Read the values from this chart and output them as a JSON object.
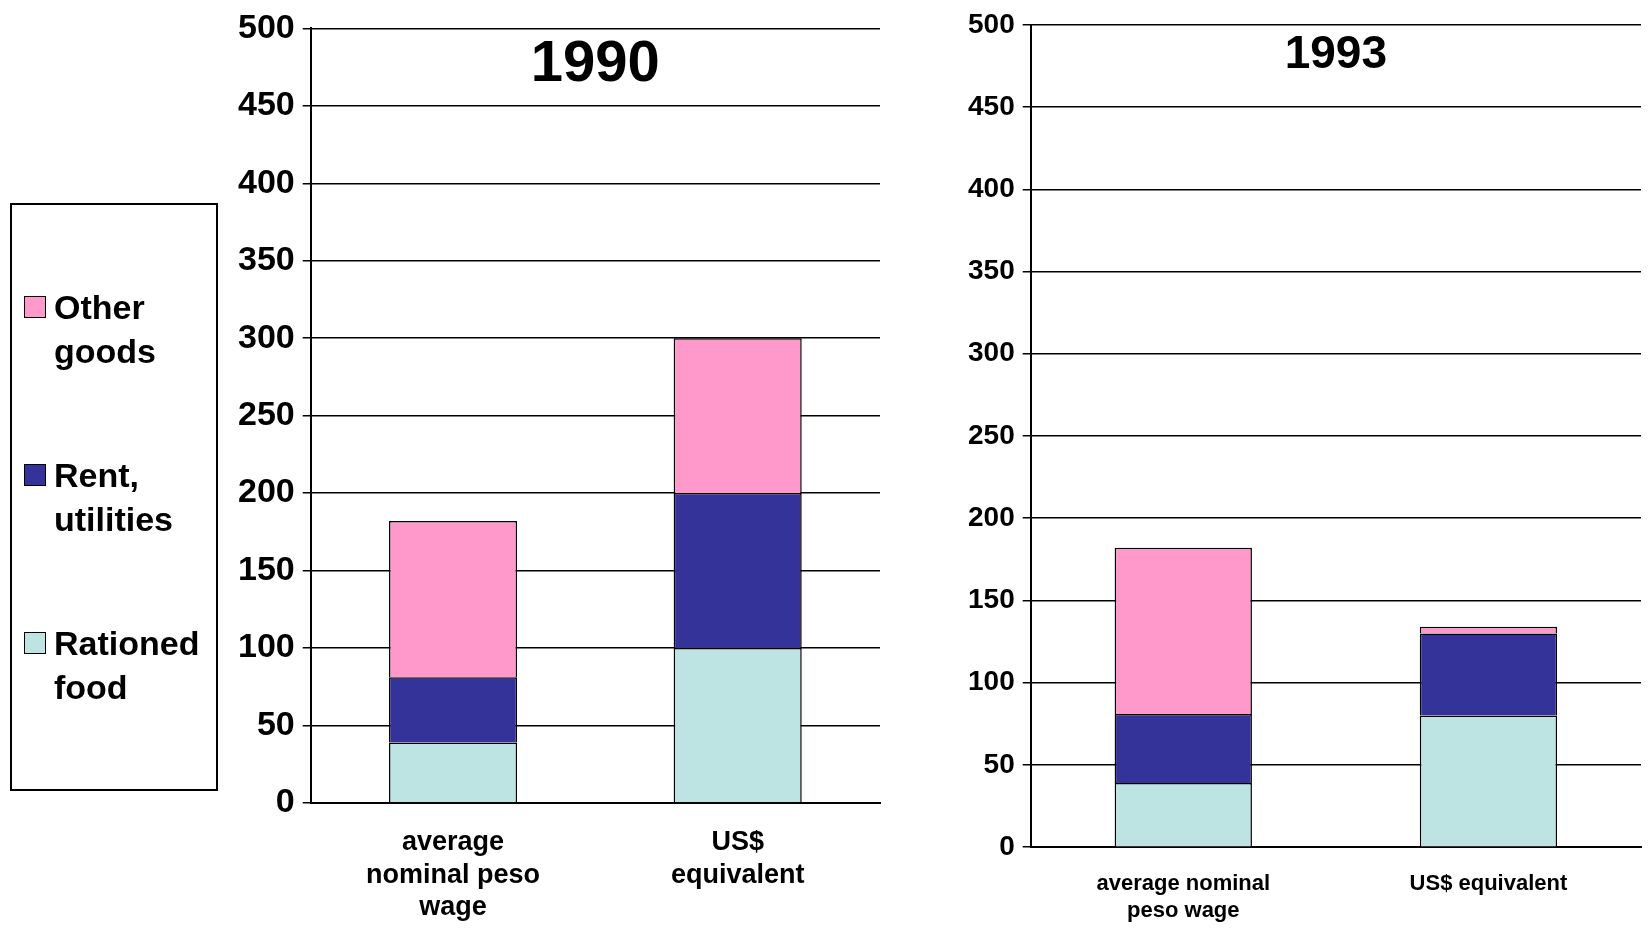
{
  "chart_data": [
    {
      "type": "bar",
      "title": "1990",
      "categories": [
        "average nominal peso wage",
        "US$ equivalent"
      ],
      "stacked": true,
      "legend": "left",
      "series": [
        {
          "name": "Rationed food",
          "color": "#bde3e3",
          "values": [
            39,
            100
          ]
        },
        {
          "name": "Rent, utilities",
          "color": "#333399",
          "values": [
            42,
            100
          ]
        },
        {
          "name": "Other goods",
          "color": "#ff99cc",
          "values": [
            101,
            100
          ]
        }
      ],
      "ylim": [
        0,
        500
      ],
      "yticks": [
        0,
        50,
        100,
        150,
        200,
        250,
        300,
        350,
        400,
        450,
        500
      ],
      "grid": "y"
    },
    {
      "type": "bar",
      "title": "1993",
      "categories": [
        "average nominal peso wage",
        "US$ equivalent"
      ],
      "stacked": true,
      "series": [
        {
          "color": "#bde3e3",
          "values": [
            39,
            80
          ]
        },
        {
          "color": "#333399",
          "values": [
            42,
            50
          ]
        },
        {
          "color": "#ff99cc",
          "values": [
            101,
            4
          ]
        }
      ],
      "ylim": [
        0,
        500
      ],
      "yticks": [
        0,
        50,
        100,
        150,
        200,
        250,
        300,
        350,
        400,
        450,
        500
      ],
      "grid": "y"
    }
  ]
}
